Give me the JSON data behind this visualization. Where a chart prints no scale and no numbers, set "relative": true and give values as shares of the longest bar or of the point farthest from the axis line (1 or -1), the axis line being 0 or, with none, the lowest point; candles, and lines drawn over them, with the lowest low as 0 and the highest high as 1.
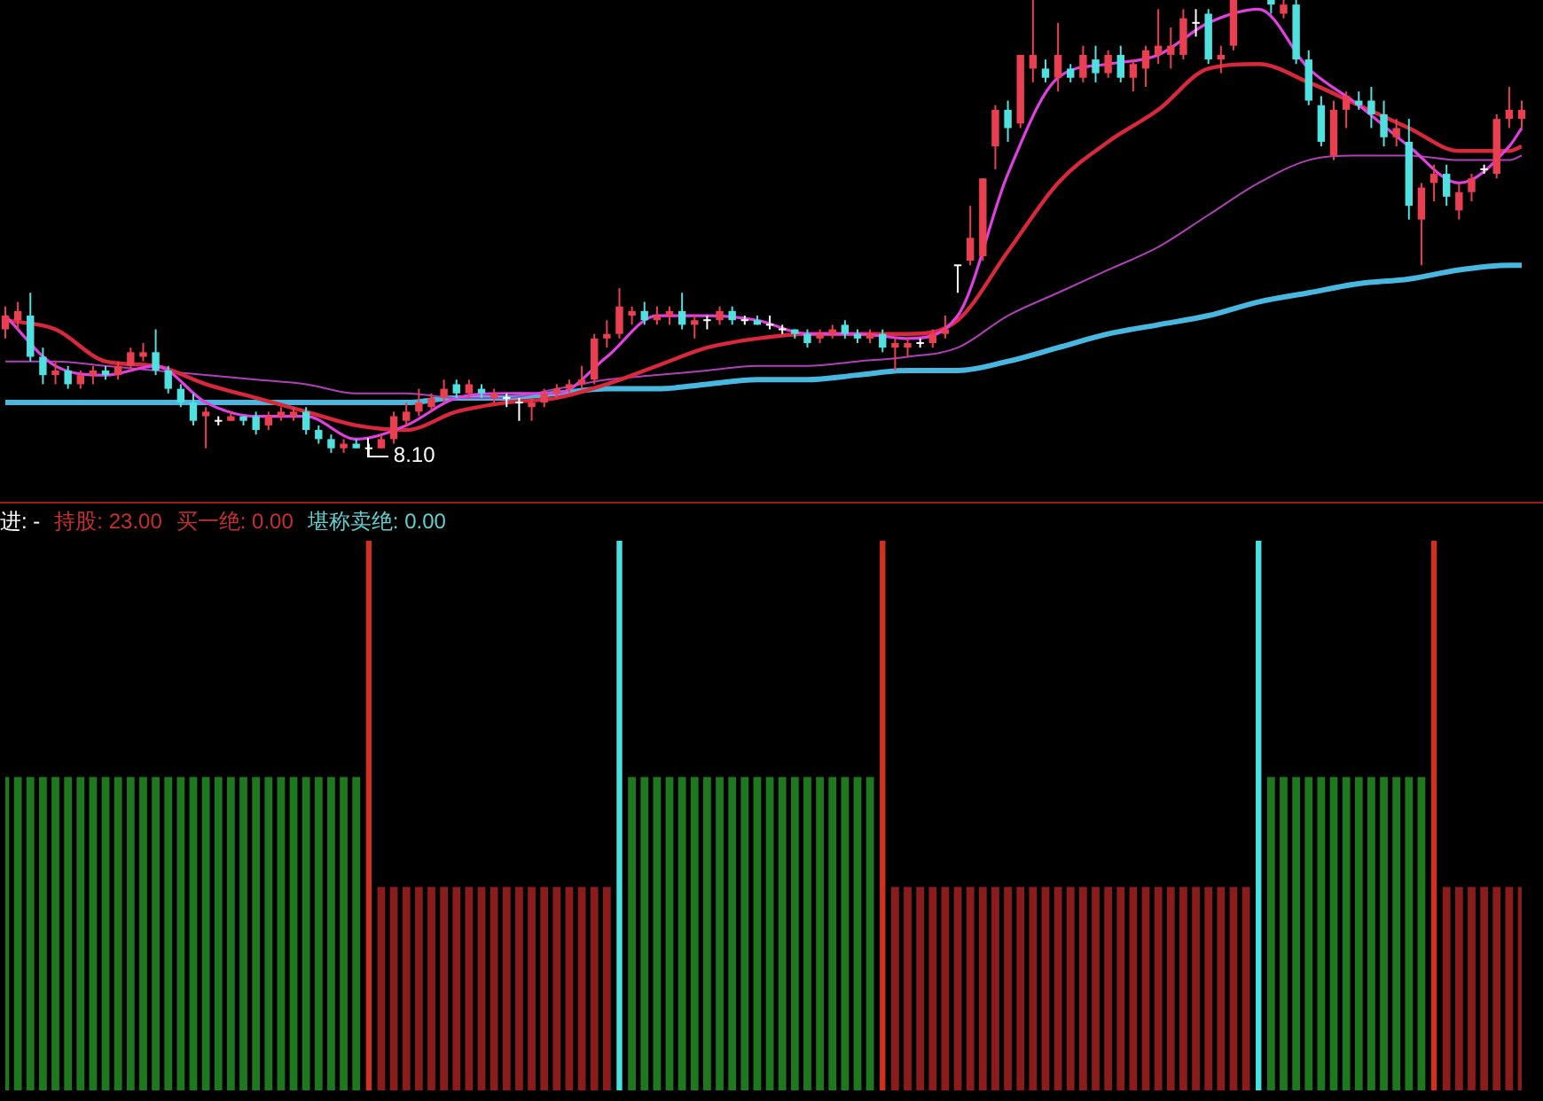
{
  "chart_data": [
    {
      "type": "candlestick",
      "relative": true,
      "categories": [
        null,
        null,
        null,
        null,
        null,
        null,
        null,
        null,
        null,
        null,
        null,
        null,
        null,
        null,
        null,
        null,
        null,
        null,
        null,
        null,
        null,
        null,
        null,
        null,
        null,
        null,
        null,
        null,
        null,
        null,
        null,
        null,
        null,
        null,
        null,
        null,
        null,
        null,
        null,
        null,
        null,
        null,
        null,
        null,
        null,
        null,
        null,
        null,
        null,
        null,
        null,
        null,
        null,
        null,
        null,
        null,
        null,
        null,
        null,
        null,
        null,
        null,
        null,
        null,
        null,
        null,
        null,
        null,
        null,
        null,
        null,
        null,
        null,
        null,
        null,
        null,
        null,
        null,
        null,
        null,
        null,
        null,
        null,
        null,
        null,
        null,
        null,
        null,
        null,
        null,
        null,
        null,
        null,
        null,
        null,
        null,
        null,
        null,
        null,
        null,
        null,
        null,
        null,
        null,
        null,
        null,
        null,
        null,
        null,
        null,
        null,
        null,
        null,
        null,
        null,
        null,
        null,
        null,
        null,
        null,
        null,
        null
      ],
      "ohlc": [
        [
          0.28,
          0.33,
          0.26,
          0.31
        ],
        [
          0.3,
          0.34,
          0.28,
          0.32
        ],
        [
          0.31,
          0.36,
          0.21,
          0.22
        ],
        [
          0.22,
          0.24,
          0.16,
          0.18
        ],
        [
          0.18,
          0.21,
          0.16,
          0.19
        ],
        [
          0.19,
          0.2,
          0.15,
          0.16
        ],
        [
          0.16,
          0.19,
          0.15,
          0.18
        ],
        [
          0.18,
          0.2,
          0.16,
          0.19
        ],
        [
          0.19,
          0.2,
          0.17,
          0.18
        ],
        [
          0.18,
          0.21,
          0.17,
          0.2
        ],
        [
          0.2,
          0.24,
          0.19,
          0.23
        ],
        [
          0.22,
          0.25,
          0.21,
          0.23
        ],
        [
          0.23,
          0.28,
          0.18,
          0.19
        ],
        [
          0.19,
          0.2,
          0.14,
          0.15
        ],
        [
          0.15,
          0.16,
          0.11,
          0.12
        ],
        [
          0.12,
          0.14,
          0.07,
          0.08
        ],
        [
          0.09,
          0.11,
          0.02,
          0.1
        ],
        [
          0.08,
          0.09,
          0.07,
          0.08
        ],
        [
          0.08,
          0.1,
          0.08,
          0.09
        ],
        [
          0.09,
          0.09,
          0.07,
          0.08
        ],
        [
          0.09,
          0.1,
          0.05,
          0.06
        ],
        [
          0.07,
          0.1,
          0.06,
          0.09
        ],
        [
          0.09,
          0.11,
          0.08,
          0.1
        ],
        [
          0.09,
          0.11,
          0.08,
          0.1
        ],
        [
          0.1,
          0.11,
          0.05,
          0.06
        ],
        [
          0.06,
          0.07,
          0.03,
          0.04
        ],
        [
          0.04,
          0.05,
          0.01,
          0.02
        ],
        [
          0.02,
          0.04,
          0.01,
          0.03
        ],
        [
          0.03,
          0.04,
          0.02,
          0.02
        ],
        [
          0.02,
          0.03,
          0,
          0.02
        ],
        [
          0.02,
          0.05,
          0.02,
          0.04
        ],
        [
          0.04,
          0.1,
          0.03,
          0.09
        ],
        [
          0.08,
          0.12,
          0.07,
          0.1
        ],
        [
          0.1,
          0.15,
          0.09,
          0.12
        ],
        [
          0.11,
          0.14,
          0.1,
          0.13
        ],
        [
          0.13,
          0.17,
          0.12,
          0.15
        ],
        [
          0.16,
          0.17,
          0.13,
          0.14
        ],
        [
          0.14,
          0.17,
          0.13,
          0.16
        ],
        [
          0.15,
          0.16,
          0.13,
          0.14
        ],
        [
          0.13,
          0.15,
          0.12,
          0.14
        ],
        [
          0.13,
          0.14,
          0.11,
          0.13
        ],
        [
          0.12,
          0.13,
          0.08,
          0.12
        ],
        [
          0.11,
          0.13,
          0.08,
          0.12
        ],
        [
          0.12,
          0.15,
          0.11,
          0.14
        ],
        [
          0.14,
          0.16,
          0.13,
          0.15
        ],
        [
          0.15,
          0.17,
          0.14,
          0.16
        ],
        [
          0.16,
          0.2,
          0.15,
          0.17
        ],
        [
          0.17,
          0.27,
          0.16,
          0.26
        ],
        [
          0.26,
          0.3,
          0.24,
          0.27
        ],
        [
          0.27,
          0.37,
          0.26,
          0.33
        ],
        [
          0.31,
          0.33,
          0.29,
          0.32
        ],
        [
          0.32,
          0.34,
          0.29,
          0.3
        ],
        [
          0.3,
          0.33,
          0.29,
          0.31
        ],
        [
          0.31,
          0.33,
          0.29,
          0.32
        ],
        [
          0.32,
          0.36,
          0.28,
          0.29
        ],
        [
          0.29,
          0.31,
          0.26,
          0.3
        ],
        [
          0.3,
          0.31,
          0.28,
          0.3
        ],
        [
          0.3,
          0.33,
          0.29,
          0.32
        ],
        [
          0.32,
          0.33,
          0.29,
          0.3
        ],
        [
          0.3,
          0.31,
          0.29,
          0.3
        ],
        [
          0.3,
          0.31,
          0.29,
          0.29
        ],
        [
          0.29,
          0.31,
          0.28,
          0.29
        ],
        [
          0.28,
          0.29,
          0.27,
          0.28
        ],
        [
          0.28,
          0.28,
          0.26,
          0.27
        ],
        [
          0.27,
          0.28,
          0.24,
          0.25
        ],
        [
          0.26,
          0.28,
          0.25,
          0.27
        ],
        [
          0.27,
          0.29,
          0.26,
          0.28
        ],
        [
          0.29,
          0.3,
          0.26,
          0.27
        ],
        [
          0.27,
          0.28,
          0.25,
          0.26
        ],
        [
          0.26,
          0.28,
          0.25,
          0.27
        ],
        [
          0.27,
          0.28,
          0.23,
          0.24
        ],
        [
          0.24,
          0.26,
          0.19,
          0.25
        ],
        [
          0.24,
          0.26,
          0.22,
          0.25
        ],
        [
          0.25,
          0.26,
          0.24,
          0.25
        ],
        [
          0.25,
          0.28,
          0.24,
          0.27
        ],
        [
          0.27,
          0.31,
          0.26,
          0.28
        ],
        [
          0.42,
          0.42,
          0.36,
          0.42
        ],
        [
          0.43,
          0.55,
          0.42,
          0.48
        ],
        [
          0.44,
          0.61,
          0.43,
          0.61
        ],
        [
          0.68,
          0.77,
          0.63,
          0.76
        ],
        [
          0.76,
          0.78,
          0.69,
          0.72
        ],
        [
          0.73,
          0.88,
          0.72,
          0.88
        ],
        [
          0.85,
          1,
          0.82,
          0.88
        ],
        [
          0.85,
          0.87,
          0.82,
          0.83
        ],
        [
          0.83,
          0.95,
          0.8,
          0.88
        ],
        [
          0.85,
          0.86,
          0.82,
          0.83
        ],
        [
          0.83,
          0.9,
          0.82,
          0.88
        ],
        [
          0.87,
          0.9,
          0.82,
          0.84
        ],
        [
          0.84,
          0.89,
          0.83,
          0.88
        ],
        [
          0.88,
          0.9,
          0.82,
          0.83
        ],
        [
          0.83,
          0.87,
          0.8,
          0.86
        ],
        [
          0.85,
          0.9,
          0.81,
          0.89
        ],
        [
          0.88,
          0.98,
          0.86,
          0.9
        ],
        [
          0.88,
          0.94,
          0.85,
          0.9
        ],
        [
          0.88,
          0.98,
          0.87,
          0.96
        ],
        [
          0.95,
          0.98,
          0.92,
          0.95
        ],
        [
          0.97,
          0.98,
          0.86,
          0.87
        ],
        [
          0.87,
          0.9,
          0.84,
          0.88
        ],
        [
          0.9,
          1,
          0.89,
          1
        ],
        null,
        null,
        [
          1,
          1,
          0.97,
          0.99
        ],
        [
          0.97,
          1,
          0.96,
          0.99
        ],
        [
          0.99,
          1,
          0.86,
          0.87
        ],
        [
          0.87,
          0.89,
          0.77,
          0.78
        ],
        [
          0.77,
          0.79,
          0.68,
          0.69
        ],
        [
          0.66,
          0.78,
          0.65,
          0.76
        ],
        [
          0.76,
          0.8,
          0.72,
          0.79
        ],
        [
          0.78,
          0.8,
          0.76,
          0.77
        ],
        [
          0.78,
          0.81,
          0.72,
          0.75
        ],
        [
          0.75,
          0.78,
          0.68,
          0.7
        ],
        [
          0.7,
          0.74,
          0.68,
          0.72
        ],
        [
          0.69,
          0.74,
          0.52,
          0.55
        ],
        [
          0.52,
          0.6,
          0.42,
          0.59
        ],
        [
          0.6,
          0.64,
          0.56,
          0.62
        ],
        [
          0.62,
          0.64,
          0.55,
          0.57
        ],
        [
          0.54,
          0.6,
          0.52,
          0.58
        ],
        [
          0.58,
          0.62,
          0.56,
          0.61
        ],
        [
          0.63,
          0.64,
          0.62,
          0.63
        ],
        [
          0.62,
          0.75,
          0.61,
          0.74
        ],
        [
          0.74,
          0.81,
          0.72,
          0.76
        ],
        [
          0.74,
          0.78,
          0.72,
          0.76
        ]
      ],
      "annotations": [
        "8.10"
      ],
      "series": [
        {
          "type": "line",
          "color": "#e040e0",
          "values": [
            0.31,
            null,
            null,
            null,
            0.2,
            null,
            null,
            null,
            0.18,
            null,
            null,
            null,
            0.2,
            null,
            null,
            null,
            0.12,
            null,
            null,
            null,
            0.09,
            null,
            null,
            null,
            0.09,
            null,
            null,
            null,
            0.04,
            null,
            null,
            null,
            0.07,
            null,
            null,
            null,
            0.13,
            null,
            null,
            null,
            0.14,
            null,
            null,
            null,
            0.14,
            null,
            null,
            null,
            0.22,
            null,
            null,
            null,
            0.31,
            null,
            null,
            null,
            0.31,
            null,
            null,
            null,
            0.3,
            null,
            null,
            null,
            0.27,
            null,
            null,
            null,
            0.27,
            null,
            null,
            null,
            0.26,
            null,
            null,
            null,
            0.31,
            null,
            null,
            null,
            0.62,
            null,
            null,
            null,
            0.83,
            null,
            null,
            null,
            0.86,
            null,
            null,
            null,
            0.88,
            null,
            null,
            null,
            0.95,
            null,
            null,
            null,
            0.98,
            null,
            null,
            null,
            0.85,
            null,
            null,
            null,
            0.77,
            null,
            null,
            null,
            0.68,
            null,
            null,
            null,
            0.6,
            null,
            null,
            null,
            0.68,
            0.72
          ]
        },
        {
          "type": "line",
          "color": "#d8283c",
          "values": [
            0.3,
            null,
            null,
            null,
            0.28,
            null,
            null,
            null,
            0.21,
            null,
            null,
            null,
            0.2,
            null,
            null,
            null,
            0.16,
            null,
            null,
            null,
            0.13,
            null,
            null,
            null,
            0.1,
            null,
            null,
            null,
            0.07,
            null,
            null,
            null,
            0.06,
            null,
            null,
            null,
            0.1,
            null,
            null,
            null,
            0.12,
            null,
            null,
            null,
            0.13,
            null,
            null,
            null,
            0.16,
            null,
            null,
            null,
            0.2,
            null,
            null,
            null,
            0.24,
            null,
            null,
            null,
            0.26,
            null,
            null,
            null,
            0.27,
            null,
            null,
            null,
            0.27,
            null,
            null,
            null,
            0.27,
            null,
            null,
            null,
            0.3,
            null,
            null,
            null,
            0.45,
            null,
            null,
            null,
            0.6,
            null,
            null,
            null,
            0.69,
            null,
            null,
            null,
            0.76,
            null,
            null,
            null,
            0.85,
            null,
            null,
            null,
            0.86,
            null,
            null,
            null,
            0.82,
            null,
            null,
            null,
            0.77,
            null,
            null,
            null,
            0.72,
            null,
            null,
            null,
            0.67,
            null,
            null,
            null,
            0.67,
            0.68
          ]
        },
        {
          "type": "line",
          "color": "#b040b8",
          "values": [
            0.21,
            null,
            null,
            null,
            0.21,
            null,
            null,
            null,
            0.2,
            null,
            null,
            null,
            0.19,
            null,
            null,
            null,
            0.18,
            null,
            null,
            null,
            0.17,
            null,
            null,
            null,
            0.16,
            null,
            null,
            null,
            0.14,
            null,
            null,
            null,
            0.14,
            null,
            null,
            null,
            0.13,
            null,
            null,
            null,
            0.13,
            null,
            null,
            null,
            0.15,
            null,
            null,
            null,
            0.17,
            null,
            null,
            null,
            0.18,
            null,
            null,
            null,
            0.19,
            null,
            null,
            null,
            0.2,
            null,
            null,
            null,
            0.2,
            null,
            null,
            null,
            0.21,
            null,
            null,
            null,
            0.22,
            null,
            null,
            null,
            0.24,
            null,
            null,
            null,
            0.31,
            null,
            null,
            null,
            0.36,
            null,
            null,
            null,
            0.41,
            null,
            null,
            null,
            0.46,
            null,
            null,
            null,
            0.53,
            null,
            null,
            null,
            0.6,
            null,
            null,
            null,
            0.65,
            null,
            null,
            null,
            0.66,
            null,
            null,
            null,
            0.66,
            null,
            null,
            null,
            0.65,
            null,
            null,
            null,
            0.65,
            0.66
          ]
        },
        {
          "type": "line",
          "color": "#48b8e0",
          "values": [
            0.12,
            null,
            null,
            null,
            0.12,
            null,
            null,
            null,
            0.12,
            null,
            null,
            null,
            0.12,
            null,
            null,
            null,
            0.12,
            null,
            null,
            null,
            0.12,
            null,
            null,
            null,
            0.12,
            null,
            null,
            null,
            0.12,
            null,
            null,
            null,
            0.12,
            null,
            null,
            null,
            0.13,
            null,
            null,
            null,
            0.13,
            null,
            null,
            null,
            0.14,
            null,
            null,
            null,
            0.15,
            null,
            null,
            null,
            0.15,
            null,
            null,
            null,
            0.16,
            null,
            null,
            null,
            0.17,
            null,
            null,
            null,
            0.17,
            null,
            null,
            null,
            0.18,
            null,
            null,
            null,
            0.19,
            null,
            null,
            null,
            0.19,
            null,
            null,
            null,
            0.21,
            null,
            null,
            null,
            0.24,
            null,
            null,
            null,
            0.27,
            null,
            null,
            null,
            0.29,
            null,
            null,
            null,
            0.31,
            null,
            null,
            null,
            0.34,
            null,
            null,
            null,
            0.36,
            null,
            null,
            null,
            0.38,
            null,
            null,
            null,
            0.39,
            null,
            null,
            null,
            0.41,
            null,
            null,
            null,
            0.42,
            0.42
          ]
        }
      ]
    },
    {
      "type": "bar",
      "relative": true,
      "categories": [
        null,
        null,
        null,
        null,
        null,
        null,
        null,
        null,
        null,
        null,
        null,
        null,
        null,
        null,
        null,
        null,
        null,
        null,
        null,
        null,
        null,
        null,
        null,
        null,
        null,
        null,
        null,
        null,
        null,
        null,
        null,
        null,
        null,
        null,
        null,
        null,
        null,
        null,
        null,
        null,
        null,
        null,
        null,
        null,
        null,
        null,
        null,
        null,
        null,
        null,
        null,
        null,
        null,
        null,
        null,
        null,
        null,
        null,
        null,
        null,
        null,
        null,
        null,
        null,
        null,
        null,
        null,
        null,
        null,
        null,
        null,
        null,
        null,
        null,
        null,
        null,
        null,
        null,
        null,
        null,
        null,
        null,
        null,
        null,
        null,
        null,
        null,
        null,
        null,
        null,
        null,
        null,
        null,
        null,
        null,
        null,
        null,
        null,
        null,
        null,
        null,
        null,
        null,
        null,
        null,
        null,
        null,
        null,
        null,
        null,
        null,
        null,
        null,
        null,
        null,
        null,
        null,
        null,
        null,
        null,
        null,
        null
      ],
      "annotations": [
        "进: -",
        "持股: 23.00",
        "买一绝: 0.00",
        "堪称卖绝: 0.00"
      ],
      "series": [
        {
          "color": "#1e781e",
          "values": [
            0.57,
            0.57,
            0.57,
            0.57,
            0.57,
            0.57,
            0.57,
            0.57,
            0.57,
            0.57,
            0.57,
            0.57,
            0.57,
            0.57,
            0.57,
            0.57,
            0.57,
            0.57,
            0.57,
            0.57,
            0.57,
            0.57,
            0.57,
            0.57,
            0.57,
            0.57,
            0.57,
            0.57,
            0.57,
            null,
            null,
            null,
            null,
            null,
            null,
            null,
            null,
            null,
            null,
            null,
            null,
            null,
            null,
            null,
            null,
            null,
            null,
            null,
            null,
            null,
            0.57,
            0.57,
            0.57,
            0.57,
            0.57,
            0.57,
            0.57,
            0.57,
            0.57,
            0.57,
            0.57,
            0.57,
            0.57,
            0.57,
            0.57,
            0.57,
            0.57,
            0.57,
            0.57,
            0.57,
            null,
            null,
            null,
            null,
            null,
            null,
            null,
            null,
            null,
            null,
            null,
            null,
            null,
            null,
            null,
            null,
            null,
            null,
            null,
            null,
            null,
            null,
            null,
            null,
            null,
            null,
            null,
            null,
            null,
            null,
            null,
            0.57,
            0.57,
            0.57,
            0.57,
            0.57,
            0.57,
            0.57,
            0.57,
            0.57,
            0.57,
            0.57,
            0.57,
            0.57,
            null,
            null,
            null,
            null,
            null,
            null,
            null,
            null
          ]
        },
        {
          "color": "#8a1c1c",
          "values": [
            null,
            null,
            null,
            null,
            null,
            null,
            null,
            null,
            null,
            null,
            null,
            null,
            null,
            null,
            null,
            null,
            null,
            null,
            null,
            null,
            null,
            null,
            null,
            null,
            null,
            null,
            null,
            null,
            null,
            null,
            0.37,
            0.37,
            0.37,
            0.37,
            0.37,
            0.37,
            0.37,
            0.37,
            0.37,
            0.37,
            0.37,
            0.37,
            0.37,
            0.37,
            0.37,
            0.37,
            0.37,
            0.37,
            0.37,
            null,
            null,
            null,
            null,
            null,
            null,
            null,
            null,
            null,
            null,
            null,
            null,
            null,
            null,
            null,
            null,
            null,
            null,
            null,
            null,
            null,
            null,
            0.37,
            0.37,
            0.37,
            0.37,
            0.37,
            0.37,
            0.37,
            0.37,
            0.37,
            0.37,
            0.37,
            0.37,
            0.37,
            0.37,
            0.37,
            0.37,
            0.37,
            0.37,
            0.37,
            0.37,
            0.37,
            0.37,
            0.37,
            0.37,
            0.37,
            0.37,
            0.37,
            0.37,
            0.37,
            null,
            null,
            null,
            null,
            null,
            null,
            null,
            null,
            null,
            null,
            null,
            null,
            null,
            null,
            null,
            0.37,
            0.37,
            0.37,
            0.37,
            0.37,
            0.37,
            0.37
          ]
        },
        {
          "color": "#d03020",
          "values": [
            null,
            null,
            null,
            null,
            null,
            null,
            null,
            null,
            null,
            null,
            null,
            null,
            null,
            null,
            null,
            null,
            null,
            null,
            null,
            null,
            null,
            null,
            null,
            null,
            null,
            null,
            null,
            null,
            null,
            1,
            null,
            null,
            null,
            null,
            null,
            null,
            null,
            null,
            null,
            null,
            null,
            null,
            null,
            null,
            null,
            null,
            null,
            null,
            null,
            null,
            null,
            null,
            null,
            null,
            null,
            null,
            null,
            null,
            null,
            null,
            null,
            null,
            null,
            null,
            null,
            null,
            null,
            null,
            null,
            null,
            1,
            null,
            null,
            null,
            null,
            null,
            null,
            null,
            null,
            null,
            null,
            null,
            null,
            null,
            null,
            null,
            null,
            null,
            null,
            null,
            null,
            null,
            null,
            null,
            null,
            null,
            null,
            null,
            null,
            null,
            null,
            null,
            null,
            null,
            null,
            null,
            null,
            null,
            null,
            null,
            null,
            null,
            null,
            null,
            1,
            null,
            null,
            null,
            null,
            null,
            null,
            null
          ]
        },
        {
          "color": "#48e0e0",
          "values": [
            null,
            null,
            null,
            null,
            null,
            null,
            null,
            null,
            null,
            null,
            null,
            null,
            null,
            null,
            null,
            null,
            null,
            null,
            null,
            null,
            null,
            null,
            null,
            null,
            null,
            null,
            null,
            null,
            null,
            null,
            null,
            null,
            null,
            null,
            null,
            null,
            null,
            null,
            null,
            null,
            null,
            null,
            null,
            null,
            null,
            null,
            null,
            null,
            null,
            1,
            null,
            null,
            null,
            null,
            null,
            null,
            null,
            null,
            null,
            null,
            null,
            null,
            null,
            null,
            null,
            null,
            null,
            null,
            null,
            null,
            null,
            null,
            null,
            null,
            null,
            null,
            null,
            null,
            null,
            null,
            null,
            null,
            null,
            null,
            null,
            null,
            null,
            null,
            null,
            null,
            null,
            null,
            null,
            null,
            null,
            null,
            null,
            null,
            null,
            null,
            1,
            null,
            null,
            null,
            null,
            null,
            null,
            null,
            null,
            null,
            null,
            null,
            null,
            null,
            null,
            null,
            null,
            null,
            null,
            null,
            null,
            null
          ]
        }
      ]
    }
  ]
}
